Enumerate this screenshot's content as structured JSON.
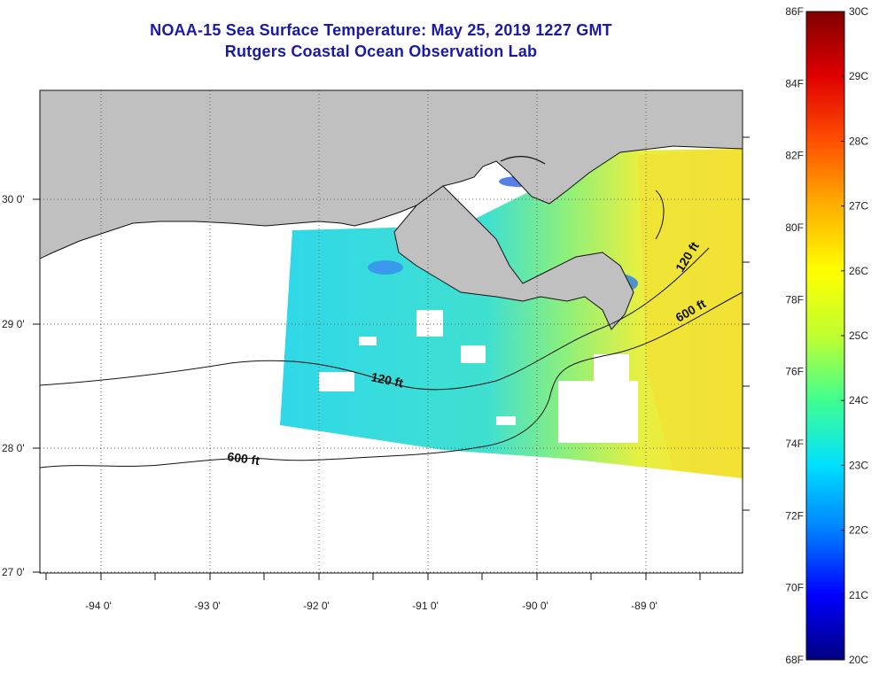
{
  "title": {
    "line1": "NOAA-15 Sea Surface Temperature:  May 25, 2019 1227 GMT",
    "line2": "Rutgers Coastal Ocean Observation Lab"
  },
  "map": {
    "lon_labels": [
      "-94 0'",
      "-93 0'",
      "-92 0'",
      "-91 0'",
      "-90 0'",
      "-89 0'"
    ],
    "lat_labels": [
      "30 0'",
      "29 0'",
      "28 0'",
      "27 0'"
    ],
    "contour_labels": [
      {
        "text": "120 ft",
        "near": "mid-shelf"
      },
      {
        "text": "600 ft",
        "near": "shelf-break-west"
      },
      {
        "text": "120 ft",
        "near": "chandeleur"
      },
      {
        "text": "600 ft",
        "near": "mississippi-canyon"
      }
    ],
    "colors": {
      "land": "#c0c0c0",
      "ocean_nodata": "#ffffff",
      "contour": "#111111"
    }
  },
  "colorbar": {
    "fahrenheit_labels": [
      "86F",
      "84F",
      "82F",
      "80F",
      "78F",
      "76F",
      "74F",
      "72F",
      "70F",
      "68F"
    ],
    "celsius_labels": [
      "30C",
      "29C",
      "28C",
      "27C",
      "26C",
      "25C",
      "24C",
      "23C",
      "22C",
      "21C",
      "20C"
    ],
    "gradient": [
      "#000080",
      "#0000ff",
      "#0080ff",
      "#00e0ff",
      "#40ff90",
      "#c0ff30",
      "#ffff00",
      "#ffb000",
      "#ff5000",
      "#e00000",
      "#800000"
    ]
  }
}
